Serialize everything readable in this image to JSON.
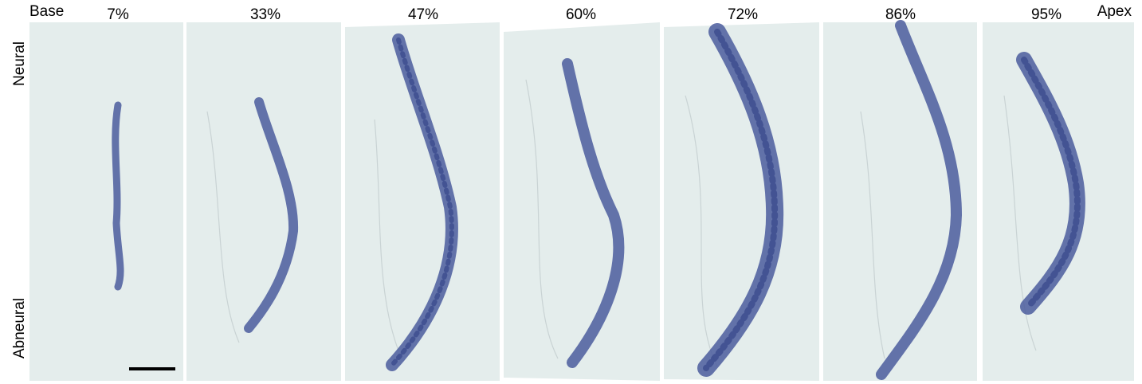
{
  "labels": {
    "base": "Base",
    "apex": "Apex",
    "neural": "Neural",
    "abneural": "Abneural"
  },
  "panels": [
    {
      "label": "7%"
    },
    {
      "label": "33%"
    },
    {
      "label": "47%"
    },
    {
      "label": "60%"
    },
    {
      "label": "72%"
    },
    {
      "label": "86%"
    },
    {
      "label": "95%"
    }
  ]
}
